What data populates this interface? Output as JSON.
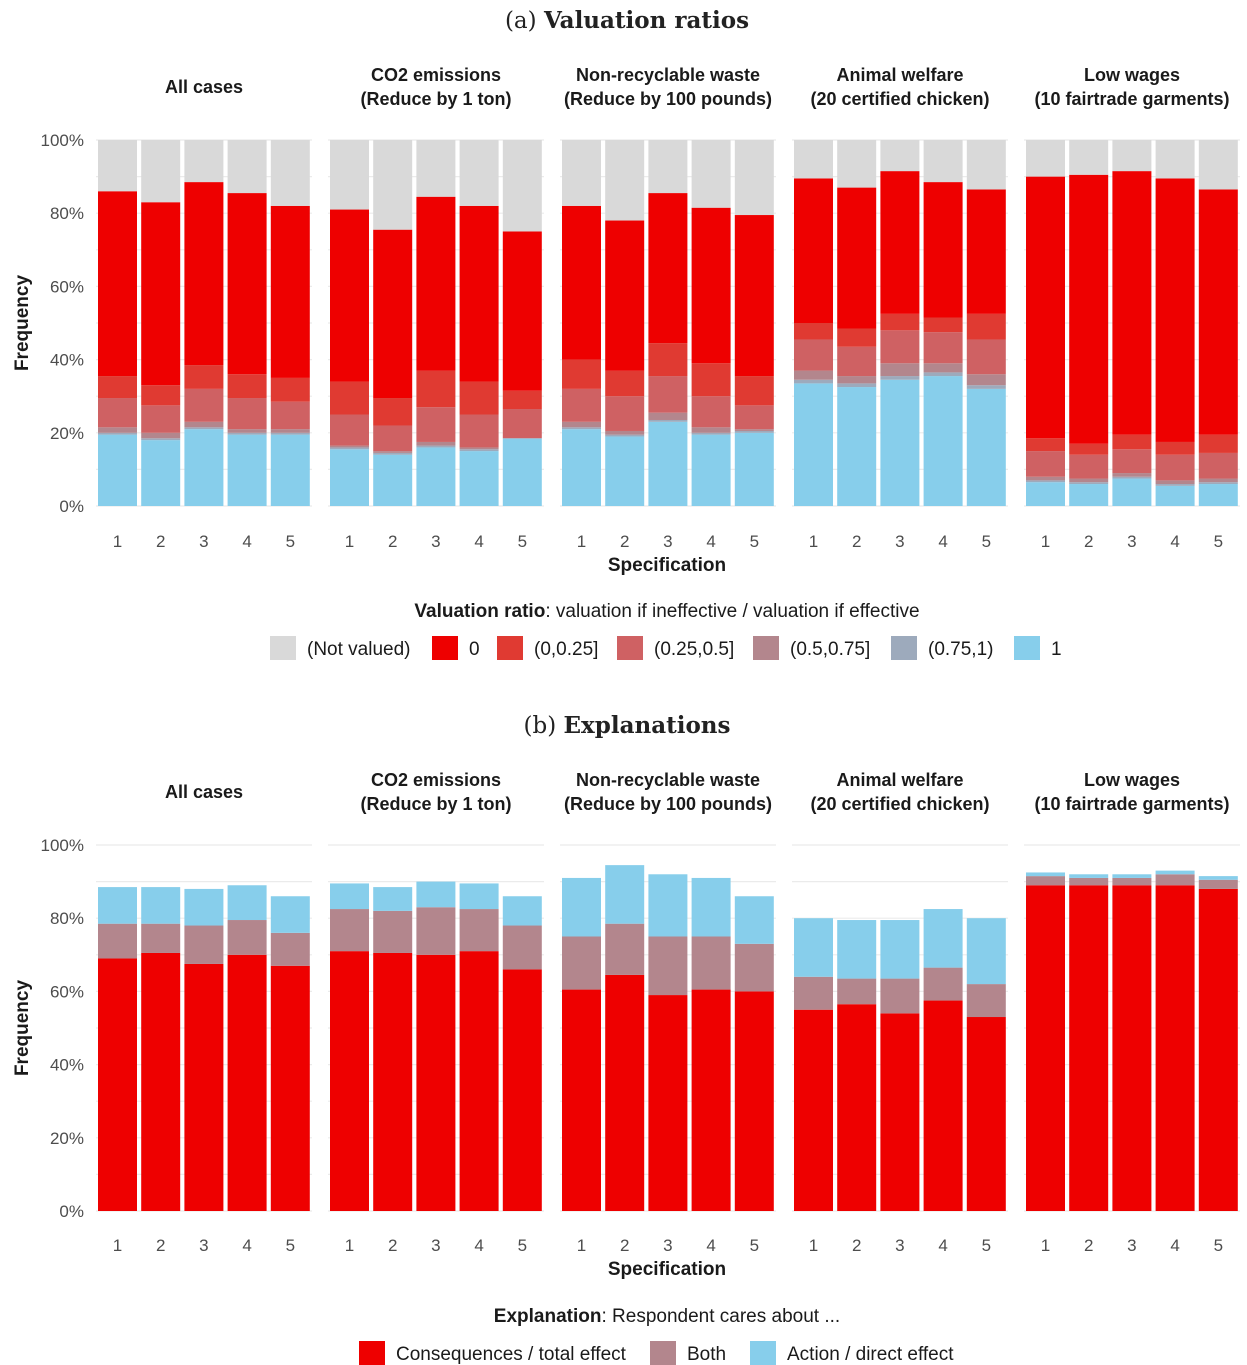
{
  "chart_data": [
    {
      "type": "bar",
      "stacked": true,
      "panel_label": "(a)",
      "title": "Valuation ratios",
      "xlabel": "Specification",
      "ylabel": "Frequency",
      "ylim": [
        0,
        100
      ],
      "yticks": [
        "0%",
        "20%",
        "40%",
        "60%",
        "80%",
        "100%"
      ],
      "categories": [
        "1",
        "2",
        "3",
        "4",
        "5"
      ],
      "grid": true,
      "legend_position": "bottom",
      "legend_title_bold": "Valuation ratio",
      "legend_title_rest": ": valuation if ineffective / valuation if effective",
      "series": [
        {
          "name": "(Not valued)",
          "color": "#d9d9d9"
        },
        {
          "name": "0",
          "color": "#ee0000"
        },
        {
          "name": "(0,0.25]",
          "color": "#e03a32"
        },
        {
          "name": "(0.25,0.5]",
          "color": "#cf6163"
        },
        {
          "name": "(0.5,0.75]",
          "color": "#b3868d"
        },
        {
          "name": "(0.75,1)",
          "color": "#9daabc"
        },
        {
          "name": "1",
          "color": "#87ceeb"
        }
      ],
      "stack_order": [
        "1",
        "(0.75,1)",
        "(0.5,0.75]",
        "(0.25,0.5]",
        "(0,0.25]",
        "0",
        "(Not valued)"
      ],
      "facets": [
        {
          "label_lines": [
            "All cases"
          ],
          "values": {
            "1": [
              19.5,
              18.0,
              21.0,
              19.5,
              19.5
            ],
            "(0.75,1)": [
              0.5,
              0.5,
              0.5,
              0.5,
              0.5
            ],
            "(0.5,0.75]": [
              1.5,
              1.5,
              1.5,
              1.0,
              1.0
            ],
            "(0.25,0.5]": [
              8.0,
              7.5,
              9.0,
              8.5,
              7.5
            ],
            "(0,0.25]": [
              6.0,
              5.5,
              6.5,
              6.5,
              6.5
            ],
            "0": [
              50.5,
              50.0,
              50.0,
              49.5,
              47.0
            ],
            "(Not valued)": [
              14.0,
              17.0,
              11.5,
              14.5,
              18.0
            ]
          }
        },
        {
          "label_lines": [
            "CO2 emissions",
            "(Reduce by 1 ton)"
          ],
          "values": {
            "1": [
              15.5,
              14.0,
              16.0,
              15.0,
              18.5
            ],
            "(0.75,1)": [
              0.5,
              0.5,
              0.5,
              0.5,
              0.0
            ],
            "(0.5,0.75]": [
              0.5,
              0.5,
              1.0,
              0.5,
              0.0
            ],
            "(0.25,0.5]": [
              8.5,
              7.0,
              9.5,
              9.0,
              8.0
            ],
            "(0,0.25]": [
              9.0,
              7.5,
              10.0,
              9.0,
              5.0
            ],
            "0": [
              47.0,
              46.0,
              47.5,
              48.0,
              43.5
            ],
            "(Not valued)": [
              19.0,
              24.5,
              15.5,
              18.0,
              25.0
            ]
          }
        },
        {
          "label_lines": [
            "Non-recyclable waste",
            "(Reduce by 100 pounds)"
          ],
          "values": {
            "1": [
              21.0,
              19.0,
              23.0,
              19.5,
              20.0
            ],
            "(0.75,1)": [
              0.5,
              0.5,
              0.5,
              0.5,
              0.5
            ],
            "(0.5,0.75]": [
              1.5,
              1.0,
              2.0,
              1.5,
              0.5
            ],
            "(0.25,0.5]": [
              9.0,
              9.5,
              10.0,
              8.5,
              6.5
            ],
            "(0,0.25]": [
              8.0,
              7.0,
              9.0,
              9.0,
              8.0
            ],
            "0": [
              42.0,
              41.0,
              41.0,
              42.5,
              44.0
            ],
            "(Not valued)": [
              18.0,
              22.0,
              14.5,
              18.5,
              20.5
            ]
          }
        },
        {
          "label_lines": [
            "Animal welfare",
            "(20 certified chicken)"
          ],
          "values": {
            "1": [
              33.5,
              32.5,
              34.5,
              35.5,
              32.0
            ],
            "(0.75,1)": [
              1.0,
              1.0,
              1.0,
              1.0,
              1.0
            ],
            "(0.5,0.75]": [
              2.5,
              2.0,
              3.5,
              2.5,
              3.0
            ],
            "(0.25,0.5]": [
              8.5,
              8.0,
              9.0,
              8.5,
              9.5
            ],
            "(0,0.25]": [
              4.5,
              5.0,
              4.5,
              4.0,
              7.0
            ],
            "0": [
              39.5,
              38.5,
              39.0,
              37.0,
              34.0
            ],
            "(Not valued)": [
              10.5,
              13.0,
              8.5,
              11.5,
              13.5
            ]
          }
        },
        {
          "label_lines": [
            "Low wages",
            "(10 fairtrade garments)"
          ],
          "values": {
            "1": [
              6.5,
              6.0,
              7.5,
              5.5,
              6.0
            ],
            "(0.75,1)": [
              0.5,
              0.5,
              0.5,
              0.5,
              0.5
            ],
            "(0.5,0.75]": [
              1.0,
              1.0,
              1.0,
              1.0,
              1.0
            ],
            "(0.25,0.5]": [
              7.0,
              6.5,
              6.5,
              7.0,
              7.0
            ],
            "(0,0.25]": [
              3.5,
              3.0,
              4.0,
              3.5,
              5.0
            ],
            "0": [
              71.5,
              73.5,
              72.0,
              72.0,
              67.0
            ],
            "(Not valued)": [
              10.0,
              9.5,
              8.5,
              10.5,
              13.5
            ]
          }
        }
      ]
    },
    {
      "type": "bar",
      "stacked": true,
      "panel_label": "(b)",
      "title": "Explanations",
      "xlabel": "Specification",
      "ylabel": "Frequency",
      "ylim": [
        0,
        100
      ],
      "yticks": [
        "0%",
        "20%",
        "40%",
        "60%",
        "80%",
        "100%"
      ],
      "categories": [
        "1",
        "2",
        "3",
        "4",
        "5"
      ],
      "grid": true,
      "legend_position": "bottom",
      "legend_title_bold": "Explanation",
      "legend_title_rest": ": Respondent cares about ...",
      "series": [
        {
          "name": "Consequences / total effect",
          "color": "#ee0000"
        },
        {
          "name": "Both",
          "color": "#b3868d"
        },
        {
          "name": "Action / direct effect",
          "color": "#87ceeb"
        }
      ],
      "stack_order": [
        "Consequences / total effect",
        "Both",
        "Action / direct effect"
      ],
      "facets": [
        {
          "label_lines": [
            "All cases"
          ],
          "values": {
            "Consequences / total effect": [
              69.0,
              70.5,
              67.5,
              70.0,
              67.0
            ],
            "Both": [
              9.5,
              8.0,
              10.5,
              9.5,
              9.0
            ],
            "Action / direct effect": [
              10.0,
              10.0,
              10.0,
              9.5,
              10.0
            ]
          }
        },
        {
          "label_lines": [
            "CO2 emissions",
            "(Reduce by 1 ton)"
          ],
          "values": {
            "Consequences / total effect": [
              71.0,
              70.5,
              70.0,
              71.0,
              66.0
            ],
            "Both": [
              11.5,
              11.5,
              13.0,
              11.5,
              12.0
            ],
            "Action / direct effect": [
              7.0,
              6.5,
              7.0,
              7.0,
              8.0
            ]
          }
        },
        {
          "label_lines": [
            "Non-recyclable waste",
            "(Reduce by 100 pounds)"
          ],
          "values": {
            "Consequences / total effect": [
              60.5,
              64.5,
              59.0,
              60.5,
              60.0
            ],
            "Both": [
              14.5,
              14.0,
              16.0,
              14.5,
              13.0
            ],
            "Action / direct effect": [
              16.0,
              16.0,
              17.0,
              16.0,
              13.0
            ]
          }
        },
        {
          "label_lines": [
            "Animal welfare",
            "(20 certified chicken)"
          ],
          "values": {
            "Consequences / total effect": [
              55.0,
              56.5,
              54.0,
              57.5,
              53.0
            ],
            "Both": [
              9.0,
              7.0,
              9.5,
              9.0,
              9.0
            ],
            "Action / direct effect": [
              16.0,
              16.0,
              16.0,
              16.0,
              18.0
            ]
          }
        },
        {
          "label_lines": [
            "Low wages",
            "(10 fairtrade garments)"
          ],
          "values": {
            "Consequences / total effect": [
              89.0,
              89.0,
              89.0,
              89.0,
              88.0
            ],
            "Both": [
              2.5,
              2.0,
              2.0,
              3.0,
              2.5
            ],
            "Action / direct effect": [
              1.0,
              1.0,
              1.0,
              1.0,
              1.0
            ]
          }
        }
      ]
    }
  ]
}
